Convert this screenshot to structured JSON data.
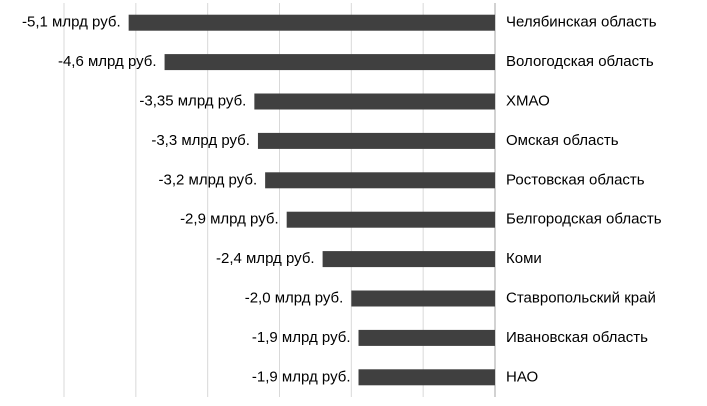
{
  "chart_data": {
    "type": "barh",
    "categories": [
      "Челябинская область",
      "Вологодская область",
      "ХМАО",
      "Омская область",
      "Ростовская область",
      "Белгородская область",
      "Коми",
      "Ставропольский край",
      "Ивановская область",
      "НАО"
    ],
    "values": [
      -5.1,
      -4.6,
      -3.35,
      -3.3,
      -3.2,
      -2.9,
      -2.4,
      -2.0,
      -1.9,
      -1.9
    ],
    "value_labels": [
      "-5,1 млрд руб.",
      "-4,6 млрд руб.",
      "-3,35 млрд руб.",
      "-3,3 млрд руб.",
      "-3,2 млрд руб.",
      "-2,9 млрд руб.",
      "-2,4 млрд руб.",
      "-2,0 млрд руб.",
      "-1,9 млрд руб.",
      "-1,9 млрд руб."
    ],
    "color": "#404040",
    "xlim": [
      -6,
      0
    ],
    "xticks": [
      -6,
      -5,
      -4,
      -3,
      -2,
      -1,
      0
    ],
    "grid": true
  }
}
